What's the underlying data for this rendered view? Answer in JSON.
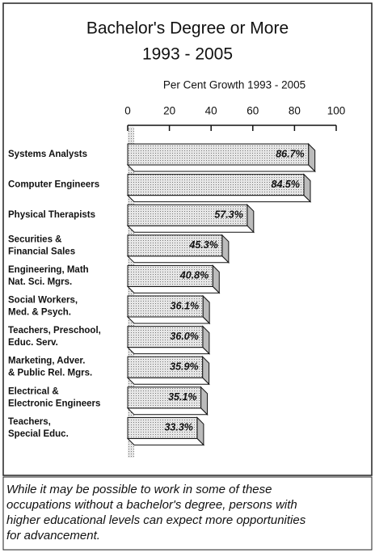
{
  "chart_data": {
    "type": "bar",
    "orientation": "horizontal",
    "title": [
      "Bachelor's Degree or More",
      "1993 - 2005"
    ],
    "subtitle": "Per Cent Growth 1993 - 2005",
    "categories": [
      [
        "Systems Analysts"
      ],
      [
        "Computer Engineers"
      ],
      [
        "Physical Therapists"
      ],
      [
        "Securities &",
        "Financial Sales"
      ],
      [
        "Engineering, Math",
        "Nat. Sci. Mgrs."
      ],
      [
        "Social Workers,",
        "Med. & Psych."
      ],
      [
        "Teachers, Preschool,",
        "Educ. Serv."
      ],
      [
        "Marketing, Adver.",
        "& Public Rel. Mgrs."
      ],
      [
        "Electrical &",
        "Electronic Engineers"
      ],
      [
        "Teachers,",
        "Special Educ."
      ]
    ],
    "values": [
      86.7,
      84.5,
      57.3,
      45.3,
      40.8,
      36.1,
      36.0,
      35.9,
      35.1,
      33.3
    ],
    "value_labels": [
      "86.7%",
      "84.5%",
      "57.3%",
      "45.3%",
      "40.8%",
      "36.1%",
      "36.0%",
      "35.9%",
      "35.1%",
      "33.3%"
    ],
    "color": "#d9d9d9",
    "xlim": [
      0,
      100
    ],
    "xticks": [
      0,
      20,
      40,
      60,
      80,
      100
    ]
  },
  "caption": [
    "While it may be possible to work in some of these",
    "occupations without a bachelor's degree, persons with",
    "higher educational levels can expect more opportunities",
    "for advancement."
  ]
}
